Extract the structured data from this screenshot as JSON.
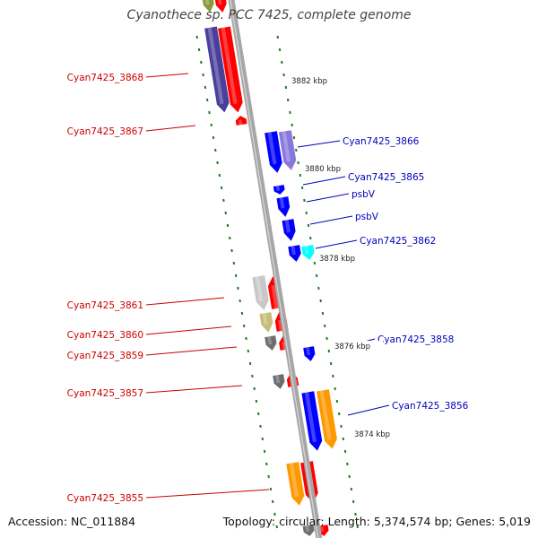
{
  "title": "Cyanothece sp. PCC 7425, complete genome",
  "footer": {
    "accession": "Accession: NC_011884",
    "summary": "Topology: circular; Length: 5,374,574 bp; Genes: 5,019"
  },
  "scale_ticks": [
    "3882 kbp",
    "3880 kbp",
    "3878 kbp",
    "3876 kbp",
    "3874 kbp"
  ],
  "colors": {
    "backbone": "#a6a6a6",
    "reverse_label": "#cc0000",
    "forward_label": "#0000bb",
    "ruler_dash": "#1f7a1f",
    "gene_red": "#ff0000",
    "gene_blue": "#0000ff",
    "gene_navy": "#4a3f9a",
    "gene_lavender": "#8877dd",
    "gene_cyan": "#00ffff",
    "gene_orange": "#ff9900",
    "gene_silver": "#c8c8c8",
    "gene_khaki": "#c8bd7a",
    "gene_gray": "#6e6e6e",
    "gene_olive": "#8a9a3a"
  },
  "reverse_labels": [
    "Cyan7425_3868",
    "Cyan7425_3867",
    "Cyan7425_3861",
    "Cyan7425_3860",
    "Cyan7425_3859",
    "Cyan7425_3857",
    "Cyan7425_3855"
  ],
  "forward_labels": [
    "Cyan7425_3866",
    "Cyan7425_3865",
    "psbV",
    "psbV",
    "Cyan7425_3862",
    "Cyan7425_3858",
    "Cyan7425_3856"
  ]
}
